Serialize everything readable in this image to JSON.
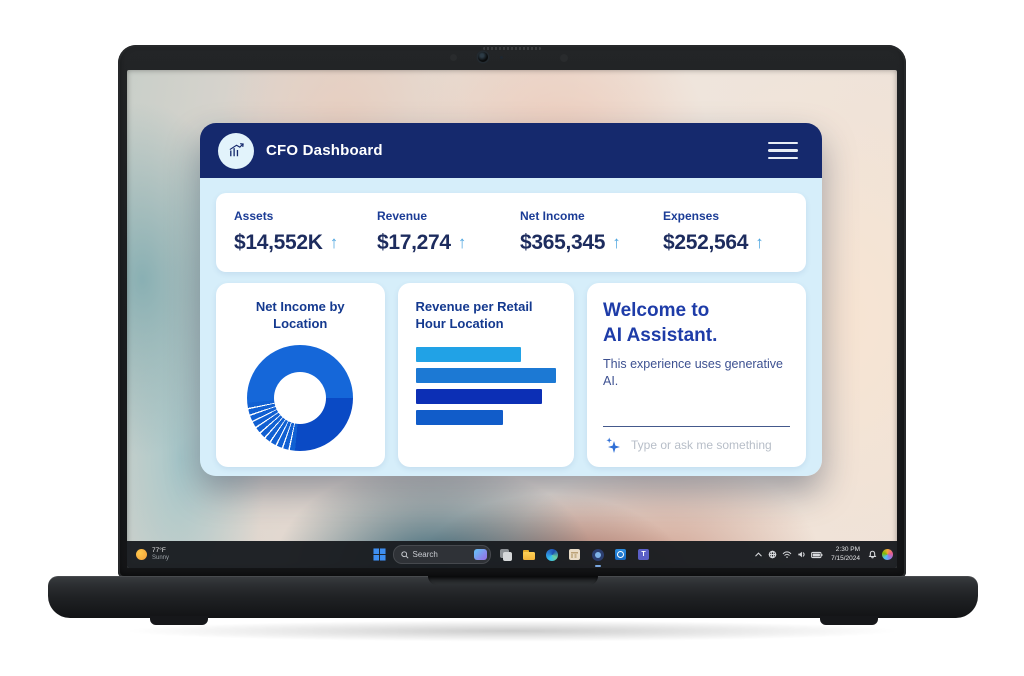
{
  "header": {
    "title": "CFO Dashboard",
    "logo_icon": "bar-chart-growth-icon",
    "menu_icon": "hamburger-menu-icon"
  },
  "ui": {
    "trend_arrow": "↑"
  },
  "stats": [
    {
      "label": "Assets",
      "value": "$14,552K",
      "trend": "up"
    },
    {
      "label": "Revenue",
      "value": "$17,274",
      "trend": "up"
    },
    {
      "label": "Net Income",
      "value": "$365,345",
      "trend": "up"
    },
    {
      "label": "Expenses",
      "value": "$252,564",
      "trend": "up"
    }
  ],
  "cards": {
    "donut": {
      "title": "Net Income by Location"
    },
    "bars": {
      "title": "Revenue per Retail Hour Location"
    },
    "assistant": {
      "title_line1": "Welcome to",
      "title_line2": "AI Assistant.",
      "subtitle": "This experience uses generative AI.",
      "input_placeholder": "Type or ask me something",
      "input_icon": "sparkle-icon"
    }
  },
  "chart_data": [
    {
      "type": "donut",
      "title": "Net Income by Location",
      "start_angle_deg": 90,
      "hole_ratio": 0.49,
      "labels_shown": false,
      "segments_clockwise": [
        {
          "name": "large-dark-blue",
          "color": "#0A4AC5",
          "pct": 26.5
        },
        {
          "name": "striped-thin-slices",
          "color": "#1160D2",
          "pct": 22.1,
          "slice_count": 11,
          "slice_pct": 1.6,
          "gap_pct": 0.45,
          "gap_color": "#FFFFFF"
        },
        {
          "name": "large-bright-blue",
          "color": "#1567D9",
          "pct": 51.4
        }
      ]
    },
    {
      "type": "bar",
      "title": "Revenue per Retail Hour Location",
      "orientation": "horizontal",
      "axis_labels_shown": false,
      "bars": [
        {
          "relative_length": 0.75,
          "color": "#21A2E6"
        },
        {
          "relative_length": 1.0,
          "color": "#1C79D4"
        },
        {
          "relative_length": 0.9,
          "color": "#0C2FB5"
        },
        {
          "relative_length": 0.62,
          "color": "#115CC9"
        }
      ]
    }
  ],
  "taskbar": {
    "weather": {
      "temp": "77°F",
      "condition": "Sunny",
      "icon": "sun-icon"
    },
    "start_icon": "windows-start-icon",
    "search": {
      "placeholder": "Search",
      "icon": "search-icon"
    },
    "app_icons": [
      "task-view",
      "file-explorer",
      "edge",
      "store",
      "dashboard-app",
      "outlook",
      "teams"
    ],
    "active_app": "dashboard-app",
    "tray_icons": [
      "chevron-up",
      "network",
      "wifi",
      "volume",
      "battery"
    ],
    "clock": {
      "time": "2:30 PM",
      "date": "7/15/2024"
    },
    "right_icons": [
      "bell",
      "copilot"
    ]
  },
  "colors": {
    "header_navy": "#15296D",
    "body_bg": "#D6EEFA",
    "label_navy": "#1B3C96",
    "value_navy": "#1D2C5E",
    "trend_arrow_blue": "#4BA4DF",
    "ai_title_blue": "#1E3CA8"
  }
}
